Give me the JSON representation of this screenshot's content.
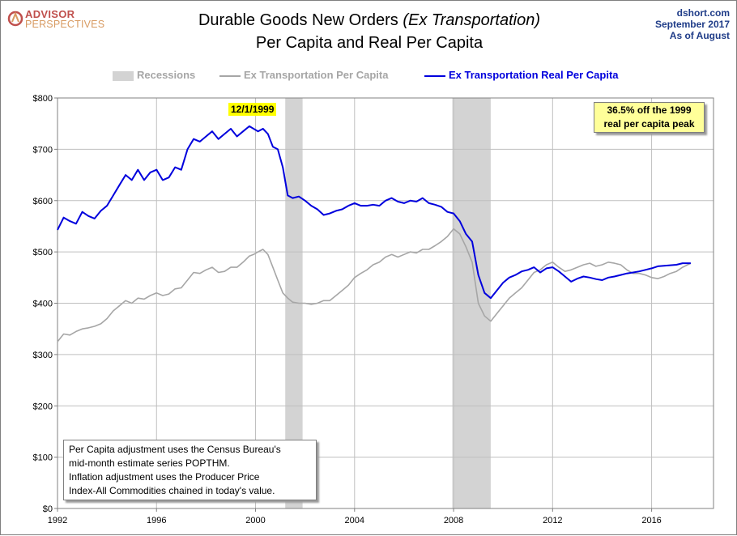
{
  "logo": {
    "line1": "ADVISOR",
    "line2": "PERSPECTIVES",
    "icon": "advisor-perspectives-logo-icon",
    "color": "#c0504d"
  },
  "header": {
    "title_main": "Durable Goods New Orders",
    "title_italic": "(Ex Transportation)",
    "title_line2": "Per Capita and Real Per Capita",
    "source": "dshort.com",
    "date": "September 2017",
    "as_of": "As  of August"
  },
  "legend": {
    "recessions": "Recessions",
    "nominal": "Ex Transportation Per Capita",
    "real": "Ex Transportation Real Per Capita"
  },
  "annotations": {
    "peak_date": "12/1/1999",
    "peak_box": [
      "36.5% off the 1999",
      "real per capita peak"
    ]
  },
  "notes": [
    "Per Capita adjustment uses the Census Bureau's",
    "mid-month estimate series POPTHM.",
    "Inflation adjustment uses the Producer Price",
    "Index-All Commodities chained in today's value."
  ],
  "colors": {
    "real": "#0000dd",
    "nominal": "#a6a6a6",
    "recession": "#d3d3d3",
    "grid": "#bfbfbf"
  },
  "chart_data": {
    "type": "line",
    "xlim": [
      1992.0,
      2018.5
    ],
    "ylim": [
      0,
      800
    ],
    "x_ticks": [
      1992,
      1996,
      2000,
      2004,
      2008,
      2012,
      2016
    ],
    "y_ticks": [
      0,
      100,
      200,
      300,
      400,
      500,
      600,
      700,
      800
    ],
    "y_tick_labels": [
      "$0",
      "$100",
      "$200",
      "$300",
      "$400",
      "$500",
      "$600",
      "$700",
      "$800"
    ],
    "grid": true,
    "legend_position": "top",
    "recessions": [
      [
        2001.2,
        2001.9
      ],
      [
        2007.95,
        2009.5
      ]
    ],
    "series": [
      {
        "name": "Ex Transportation Real Per Capita",
        "color": "#0000dd",
        "x": [
          1992.0,
          1992.25,
          1992.5,
          1992.75,
          1993.0,
          1993.25,
          1993.5,
          1993.75,
          1994.0,
          1994.25,
          1994.5,
          1994.75,
          1995.0,
          1995.25,
          1995.5,
          1995.75,
          1996.0,
          1996.25,
          1996.5,
          1996.75,
          1997.0,
          1997.25,
          1997.5,
          1997.75,
          1998.0,
          1998.25,
          1998.5,
          1998.75,
          1999.0,
          1999.25,
          1999.5,
          1999.75,
          1999.92,
          2000.1,
          2000.3,
          2000.5,
          2000.7,
          2000.9,
          2001.1,
          2001.3,
          2001.5,
          2001.75,
          2002.0,
          2002.25,
          2002.5,
          2002.75,
          2003.0,
          2003.25,
          2003.5,
          2003.75,
          2004.0,
          2004.25,
          2004.5,
          2004.75,
          2005.0,
          2005.25,
          2005.5,
          2005.75,
          2006.0,
          2006.25,
          2006.5,
          2006.75,
          2007.0,
          2007.25,
          2007.5,
          2007.75,
          2008.0,
          2008.25,
          2008.5,
          2008.75,
          2009.0,
          2009.25,
          2009.5,
          2009.75,
          2010.0,
          2010.25,
          2010.5,
          2010.75,
          2011.0,
          2011.25,
          2011.5,
          2011.75,
          2012.0,
          2012.25,
          2012.5,
          2012.75,
          2013.0,
          2013.25,
          2013.5,
          2013.75,
          2014.0,
          2014.25,
          2014.5,
          2014.75,
          2015.0,
          2015.25,
          2015.5,
          2015.75,
          2016.0,
          2016.25,
          2016.5,
          2016.75,
          2017.0,
          2017.25,
          2017.58
        ],
        "values": [
          543,
          567,
          560,
          555,
          578,
          570,
          565,
          580,
          590,
          610,
          630,
          650,
          640,
          660,
          640,
          655,
          660,
          640,
          645,
          665,
          660,
          700,
          720,
          715,
          725,
          735,
          720,
          730,
          740,
          725,
          735,
          745,
          740,
          735,
          740,
          730,
          705,
          700,
          665,
          610,
          605,
          608,
          600,
          590,
          583,
          572,
          575,
          580,
          583,
          590,
          595,
          590,
          590,
          592,
          590,
          600,
          605,
          598,
          595,
          600,
          598,
          605,
          595,
          592,
          588,
          578,
          575,
          560,
          535,
          520,
          455,
          420,
          410,
          425,
          440,
          450,
          455,
          462,
          465,
          470,
          460,
          468,
          470,
          462,
          452,
          442,
          448,
          452,
          450,
          447,
          445,
          450,
          452,
          455,
          458,
          460,
          462,
          465,
          468,
          472,
          473,
          474,
          475,
          478,
          478
        ]
      },
      {
        "name": "Ex Transportation Per Capita",
        "color": "#a6a6a6",
        "x": [
          1992.0,
          1992.25,
          1992.5,
          1992.75,
          1993.0,
          1993.25,
          1993.5,
          1993.75,
          1994.0,
          1994.25,
          1994.5,
          1994.75,
          1995.0,
          1995.25,
          1995.5,
          1995.75,
          1996.0,
          1996.25,
          1996.5,
          1996.75,
          1997.0,
          1997.25,
          1997.5,
          1997.75,
          1998.0,
          1998.25,
          1998.5,
          1998.75,
          1999.0,
          1999.25,
          1999.5,
          1999.75,
          1999.92,
          2000.1,
          2000.3,
          2000.5,
          2000.7,
          2000.9,
          2001.1,
          2001.3,
          2001.5,
          2001.75,
          2002.0,
          2002.25,
          2002.5,
          2002.75,
          2003.0,
          2003.25,
          2003.5,
          2003.75,
          2004.0,
          2004.25,
          2004.5,
          2004.75,
          2005.0,
          2005.25,
          2005.5,
          2005.75,
          2006.0,
          2006.25,
          2006.5,
          2006.75,
          2007.0,
          2007.25,
          2007.5,
          2007.75,
          2008.0,
          2008.25,
          2008.5,
          2008.75,
          2009.0,
          2009.25,
          2009.5,
          2009.75,
          2010.0,
          2010.25,
          2010.5,
          2010.75,
          2011.0,
          2011.25,
          2011.5,
          2011.75,
          2012.0,
          2012.25,
          2012.5,
          2012.75,
          2013.0,
          2013.25,
          2013.5,
          2013.75,
          2014.0,
          2014.25,
          2014.5,
          2014.75,
          2015.0,
          2015.25,
          2015.5,
          2015.75,
          2016.0,
          2016.25,
          2016.5,
          2016.75,
          2017.0,
          2017.25,
          2017.58
        ],
        "values": [
          325,
          340,
          338,
          345,
          350,
          352,
          355,
          360,
          370,
          385,
          395,
          405,
          400,
          410,
          408,
          415,
          420,
          415,
          418,
          428,
          430,
          445,
          460,
          458,
          465,
          470,
          460,
          462,
          470,
          470,
          480,
          492,
          495,
          500,
          505,
          495,
          470,
          445,
          420,
          410,
          402,
          400,
          400,
          398,
          400,
          405,
          405,
          415,
          425,
          435,
          450,
          458,
          465,
          475,
          480,
          490,
          495,
          490,
          495,
          500,
          498,
          505,
          505,
          512,
          520,
          530,
          545,
          535,
          510,
          480,
          400,
          375,
          365,
          380,
          395,
          410,
          420,
          430,
          445,
          460,
          465,
          475,
          480,
          470,
          462,
          465,
          470,
          475,
          478,
          472,
          475,
          480,
          478,
          475,
          465,
          458,
          458,
          455,
          450,
          448,
          452,
          458,
          462,
          470,
          478
        ]
      }
    ]
  }
}
